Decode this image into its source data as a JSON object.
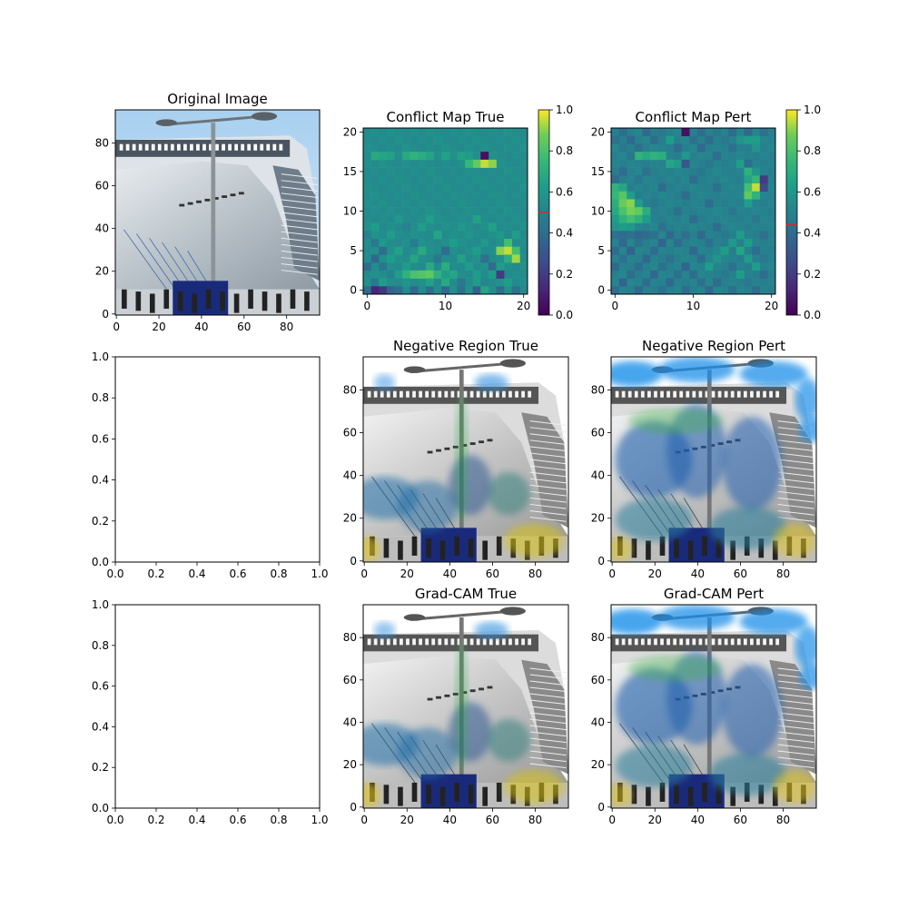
{
  "chart_data": [
    {
      "type": "heatmap",
      "title": "Original Image",
      "content": "photo",
      "xlim": [
        -0.5,
        95.5
      ],
      "ylim": [
        95.5,
        -0.5
      ],
      "xticks": [
        0,
        20,
        40,
        60,
        80
      ],
      "yticks": [
        0,
        20,
        40,
        60,
        80
      ]
    },
    {
      "type": "heatmap",
      "title": "Conflict Map True",
      "content": "grid",
      "grid_size": 21,
      "colormap": "viridis",
      "xlim": [
        -0.5,
        20.5
      ],
      "ylim": [
        20.5,
        -0.5
      ],
      "xticks": [
        0,
        10,
        20
      ],
      "yticks": [
        0,
        5,
        10,
        15,
        20
      ],
      "colorbar": {
        "range": [
          0,
          1
        ],
        "ticks": [
          "0.0",
          "0.2",
          "0.4",
          "0.6",
          "0.8",
          "1.0"
        ],
        "marker_value": 0.5,
        "marker_color": "#d62728"
      },
      "base_value": 0.55,
      "cells": [
        [
          3,
          1,
          0.68
        ],
        [
          3,
          2,
          0.66
        ],
        [
          3,
          3,
          0.64
        ],
        [
          3,
          5,
          0.68
        ],
        [
          3,
          6,
          0.72
        ],
        [
          3,
          7,
          0.7
        ],
        [
          3,
          8,
          0.66
        ],
        [
          3,
          10,
          0.64
        ],
        [
          3,
          12,
          0.64
        ],
        [
          3,
          13,
          0.62
        ],
        [
          3,
          15,
          0.05
        ],
        [
          4,
          14,
          0.85
        ],
        [
          4,
          15,
          0.95
        ],
        [
          4,
          16,
          0.9
        ],
        [
          4,
          13,
          0.75
        ],
        [
          11,
          4,
          0.6
        ],
        [
          11,
          8,
          0.62
        ],
        [
          11,
          14,
          0.64
        ],
        [
          12,
          1,
          0.62
        ],
        [
          12,
          5,
          0.5
        ],
        [
          12,
          7,
          0.62
        ],
        [
          12,
          12,
          0.6
        ],
        [
          12,
          16,
          0.64
        ],
        [
          13,
          0,
          0.5
        ],
        [
          13,
          3,
          0.62
        ],
        [
          13,
          9,
          0.66
        ],
        [
          13,
          13,
          0.58
        ],
        [
          13,
          17,
          0.6
        ],
        [
          13,
          19,
          0.62
        ],
        [
          14,
          1,
          0.45
        ],
        [
          14,
          2,
          0.6
        ],
        [
          14,
          6,
          0.48
        ],
        [
          14,
          11,
          0.62
        ],
        [
          14,
          15,
          0.6
        ],
        [
          14,
          18,
          0.78
        ],
        [
          15,
          2,
          0.4
        ],
        [
          15,
          4,
          0.64
        ],
        [
          15,
          7,
          0.68
        ],
        [
          15,
          10,
          0.4
        ],
        [
          15,
          14,
          0.62
        ],
        [
          15,
          17,
          0.9
        ],
        [
          15,
          18,
          0.95
        ],
        [
          15,
          19,
          0.78
        ],
        [
          16,
          1,
          0.38
        ],
        [
          16,
          3,
          0.62
        ],
        [
          16,
          6,
          0.66
        ],
        [
          16,
          9,
          0.45
        ],
        [
          16,
          12,
          0.64
        ],
        [
          16,
          15,
          0.42
        ],
        [
          16,
          18,
          0.7
        ],
        [
          16,
          19,
          0.92
        ],
        [
          17,
          0,
          0.4
        ],
        [
          17,
          2,
          0.45
        ],
        [
          17,
          5,
          0.62
        ],
        [
          17,
          8,
          0.68
        ],
        [
          17,
          10,
          0.7
        ],
        [
          17,
          13,
          0.62
        ],
        [
          17,
          16,
          0.4
        ],
        [
          17,
          17,
          0.62
        ],
        [
          18,
          3,
          0.5
        ],
        [
          18,
          4,
          0.62
        ],
        [
          18,
          5,
          0.72
        ],
        [
          18,
          6,
          0.8
        ],
        [
          18,
          7,
          0.82
        ],
        [
          18,
          8,
          0.84
        ],
        [
          18,
          9,
          0.72
        ],
        [
          18,
          10,
          0.62
        ],
        [
          18,
          11,
          0.66
        ],
        [
          18,
          14,
          0.62
        ],
        [
          18,
          16,
          0.62
        ],
        [
          18,
          17,
          0.2
        ],
        [
          19,
          1,
          0.45
        ],
        [
          19,
          2,
          0.62
        ],
        [
          19,
          5,
          0.58
        ],
        [
          19,
          8,
          0.64
        ],
        [
          19,
          10,
          0.68
        ],
        [
          19,
          12,
          0.45
        ],
        [
          19,
          14,
          0.62
        ],
        [
          19,
          15,
          0.52
        ],
        [
          19,
          18,
          0.62
        ],
        [
          20,
          0,
          0.4
        ],
        [
          20,
          1,
          0.12
        ],
        [
          20,
          2,
          0.18
        ],
        [
          20,
          3,
          0.35
        ],
        [
          20,
          4,
          0.4
        ],
        [
          20,
          6,
          0.38
        ],
        [
          20,
          8,
          0.4
        ],
        [
          20,
          10,
          0.38
        ],
        [
          20,
          12,
          0.42
        ],
        [
          20,
          14,
          0.35
        ],
        [
          20,
          15,
          0.66
        ],
        [
          20,
          17,
          0.4
        ],
        [
          20,
          19,
          0.42
        ]
      ]
    },
    {
      "type": "heatmap",
      "title": "Conflict Map Pert",
      "content": "grid",
      "grid_size": 21,
      "colormap": "viridis",
      "xlim": [
        -0.5,
        20.5
      ],
      "ylim": [
        20.5,
        -0.5
      ],
      "xticks": [
        0,
        10,
        20
      ],
      "yticks": [
        0,
        5,
        10,
        15,
        20
      ],
      "colorbar": {
        "range": [
          0,
          1
        ],
        "ticks": [
          "0.0",
          "0.2",
          "0.4",
          "0.6",
          "0.8",
          "1.0"
        ],
        "marker_value": 0.44,
        "marker_color": "#d62728"
      },
      "base_value": 0.5,
      "cells": [
        [
          0,
          1,
          0.4
        ],
        [
          0,
          4,
          0.38
        ],
        [
          0,
          6,
          0.45
        ],
        [
          0,
          9,
          0.05
        ],
        [
          0,
          11,
          0.4
        ],
        [
          0,
          13,
          0.45
        ],
        [
          0,
          15,
          0.4
        ],
        [
          0,
          17,
          0.38
        ],
        [
          0,
          19,
          0.42
        ],
        [
          1,
          0,
          0.42
        ],
        [
          1,
          2,
          0.38
        ],
        [
          1,
          5,
          0.4
        ],
        [
          1,
          7,
          0.62
        ],
        [
          1,
          10,
          0.42
        ],
        [
          1,
          12,
          0.4
        ],
        [
          1,
          14,
          0.45
        ],
        [
          1,
          16,
          0.58
        ],
        [
          1,
          17,
          0.62
        ],
        [
          1,
          18,
          0.62
        ],
        [
          2,
          1,
          0.45
        ],
        [
          2,
          3,
          0.42
        ],
        [
          2,
          8,
          0.4
        ],
        [
          2,
          11,
          0.38
        ],
        [
          2,
          15,
          0.42
        ],
        [
          2,
          18,
          0.58
        ],
        [
          3,
          3,
          0.72
        ],
        [
          3,
          4,
          0.68
        ],
        [
          3,
          5,
          0.72
        ],
        [
          3,
          6,
          0.7
        ],
        [
          3,
          2,
          0.45
        ],
        [
          3,
          9,
          0.6
        ],
        [
          3,
          13,
          0.4
        ],
        [
          4,
          7,
          0.66
        ],
        [
          4,
          8,
          0.62
        ],
        [
          4,
          9,
          0.3
        ],
        [
          4,
          16,
          0.62
        ],
        [
          4,
          17,
          0.4
        ],
        [
          4,
          12,
          0.45
        ],
        [
          5,
          1,
          0.4
        ],
        [
          5,
          4,
          0.42
        ],
        [
          5,
          11,
          0.45
        ],
        [
          5,
          17,
          0.72
        ],
        [
          5,
          18,
          0.58
        ],
        [
          6,
          0,
          0.4
        ],
        [
          6,
          3,
          0.45
        ],
        [
          6,
          10,
          0.4
        ],
        [
          6,
          17,
          0.66
        ],
        [
          6,
          18,
          0.75
        ],
        [
          6,
          19,
          0.2
        ],
        [
          7,
          0,
          0.72
        ],
        [
          7,
          1,
          0.66
        ],
        [
          7,
          6,
          0.4
        ],
        [
          7,
          13,
          0.42
        ],
        [
          7,
          17,
          0.78
        ],
        [
          7,
          18,
          0.95
        ],
        [
          7,
          19,
          0.25
        ],
        [
          8,
          0,
          0.75
        ],
        [
          8,
          1,
          0.82
        ],
        [
          8,
          2,
          0.62
        ],
        [
          8,
          9,
          0.4
        ],
        [
          8,
          17,
          0.84
        ],
        [
          8,
          18,
          0.72
        ],
        [
          9,
          0,
          0.7
        ],
        [
          9,
          1,
          0.86
        ],
        [
          9,
          2,
          0.9
        ],
        [
          9,
          3,
          0.62
        ],
        [
          9,
          5,
          0.45
        ],
        [
          9,
          12,
          0.4
        ],
        [
          9,
          17,
          0.62
        ],
        [
          10,
          0,
          0.68
        ],
        [
          10,
          1,
          0.8
        ],
        [
          10,
          2,
          0.88
        ],
        [
          10,
          3,
          0.85
        ],
        [
          10,
          4,
          0.7
        ],
        [
          10,
          8,
          0.42
        ],
        [
          10,
          15,
          0.45
        ],
        [
          11,
          0,
          0.62
        ],
        [
          11,
          1,
          0.72
        ],
        [
          11,
          2,
          0.78
        ],
        [
          11,
          3,
          0.72
        ],
        [
          11,
          4,
          0.62
        ],
        [
          11,
          10,
          0.4
        ],
        [
          11,
          18,
          0.45
        ],
        [
          12,
          0,
          0.58
        ],
        [
          12,
          1,
          0.62
        ],
        [
          12,
          2,
          0.6
        ],
        [
          12,
          6,
          0.42
        ],
        [
          12,
          13,
          0.4
        ],
        [
          13,
          0,
          0.42
        ],
        [
          13,
          1,
          0.4
        ],
        [
          13,
          2,
          0.42
        ],
        [
          13,
          3,
          0.38
        ],
        [
          13,
          4,
          0.4
        ],
        [
          13,
          5,
          0.42
        ],
        [
          13,
          7,
          0.38
        ],
        [
          13,
          9,
          0.42
        ],
        [
          13,
          11,
          0.38
        ],
        [
          13,
          14,
          0.45
        ],
        [
          13,
          16,
          0.62
        ],
        [
          13,
          19,
          0.42
        ],
        [
          14,
          1,
          0.38
        ],
        [
          14,
          3,
          0.42
        ],
        [
          14,
          6,
          0.36
        ],
        [
          14,
          8,
          0.4
        ],
        [
          14,
          12,
          0.42
        ],
        [
          14,
          15,
          0.6
        ],
        [
          14,
          17,
          0.62
        ],
        [
          15,
          0,
          0.4
        ],
        [
          15,
          2,
          0.35
        ],
        [
          15,
          5,
          0.4
        ],
        [
          15,
          10,
          0.38
        ],
        [
          15,
          14,
          0.62
        ],
        [
          15,
          16,
          0.66
        ],
        [
          15,
          18,
          0.4
        ],
        [
          16,
          1,
          0.42
        ],
        [
          16,
          4,
          0.38
        ],
        [
          16,
          7,
          0.42
        ],
        [
          16,
          11,
          0.4
        ],
        [
          16,
          13,
          0.58
        ],
        [
          16,
          17,
          0.62
        ],
        [
          16,
          19,
          0.45
        ],
        [
          17,
          0,
          0.38
        ],
        [
          17,
          3,
          0.4
        ],
        [
          17,
          6,
          0.42
        ],
        [
          17,
          9,
          0.36
        ],
        [
          17,
          12,
          0.62
        ],
        [
          17,
          15,
          0.42
        ],
        [
          17,
          18,
          0.62
        ],
        [
          18,
          2,
          0.4
        ],
        [
          18,
          5,
          0.38
        ],
        [
          18,
          8,
          0.42
        ],
        [
          18,
          10,
          0.4
        ],
        [
          18,
          14,
          0.45
        ],
        [
          18,
          16,
          0.62
        ],
        [
          18,
          19,
          0.4
        ],
        [
          19,
          1,
          0.36
        ],
        [
          19,
          4,
          0.4
        ],
        [
          19,
          7,
          0.38
        ],
        [
          19,
          11,
          0.42
        ],
        [
          19,
          13,
          0.4
        ],
        [
          19,
          17,
          0.45
        ],
        [
          20,
          0,
          0.4
        ],
        [
          20,
          3,
          0.38
        ],
        [
          20,
          6,
          0.42
        ],
        [
          20,
          9,
          0.4
        ],
        [
          20,
          12,
          0.38
        ],
        [
          20,
          15,
          0.42
        ],
        [
          20,
          18,
          0.4
        ]
      ]
    },
    {
      "type": "scatter",
      "title": "",
      "content": "empty",
      "xlim": [
        0,
        1
      ],
      "ylim": [
        0,
        1
      ],
      "xticks": [
        "0.0",
        "0.2",
        "0.4",
        "0.6",
        "0.8",
        "1.0"
      ],
      "yticks": [
        "0.0",
        "0.2",
        "0.4",
        "0.6",
        "0.8",
        "1.0"
      ]
    },
    {
      "type": "heatmap",
      "title": "Negative Region True",
      "content": "photo-overlay",
      "overlay": "true",
      "xlim": [
        -0.5,
        95.5
      ],
      "ylim": [
        95.5,
        -0.5
      ],
      "xticks": [
        0,
        20,
        40,
        60,
        80
      ],
      "yticks": [
        0,
        20,
        40,
        60,
        80
      ]
    },
    {
      "type": "heatmap",
      "title": "Negative Region Pert",
      "content": "photo-overlay",
      "overlay": "pert",
      "xlim": [
        -0.5,
        95.5
      ],
      "ylim": [
        95.5,
        -0.5
      ],
      "xticks": [
        0,
        20,
        40,
        60,
        80
      ],
      "yticks": [
        0,
        20,
        40,
        60,
        80
      ]
    },
    {
      "type": "scatter",
      "title": "",
      "content": "empty",
      "xlim": [
        0,
        1
      ],
      "ylim": [
        0,
        1
      ],
      "xticks": [
        "0.0",
        "0.2",
        "0.4",
        "0.6",
        "0.8",
        "1.0"
      ],
      "yticks": [
        "0.0",
        "0.2",
        "0.4",
        "0.6",
        "0.8",
        "1.0"
      ]
    },
    {
      "type": "heatmap",
      "title": "Grad-CAM True",
      "content": "photo-overlay",
      "overlay": "true",
      "xlim": [
        -0.5,
        95.5
      ],
      "ylim": [
        95.5,
        -0.5
      ],
      "xticks": [
        0,
        20,
        40,
        60,
        80
      ],
      "yticks": [
        0,
        20,
        40,
        60,
        80
      ]
    },
    {
      "type": "heatmap",
      "title": "Grad-CAM Pert",
      "content": "photo-overlay",
      "overlay": "pert",
      "xlim": [
        -0.5,
        95.5
      ],
      "ylim": [
        95.5,
        -0.5
      ],
      "xticks": [
        0,
        20,
        40,
        60,
        80
      ],
      "yticks": [
        0,
        20,
        40,
        60,
        80
      ]
    }
  ]
}
